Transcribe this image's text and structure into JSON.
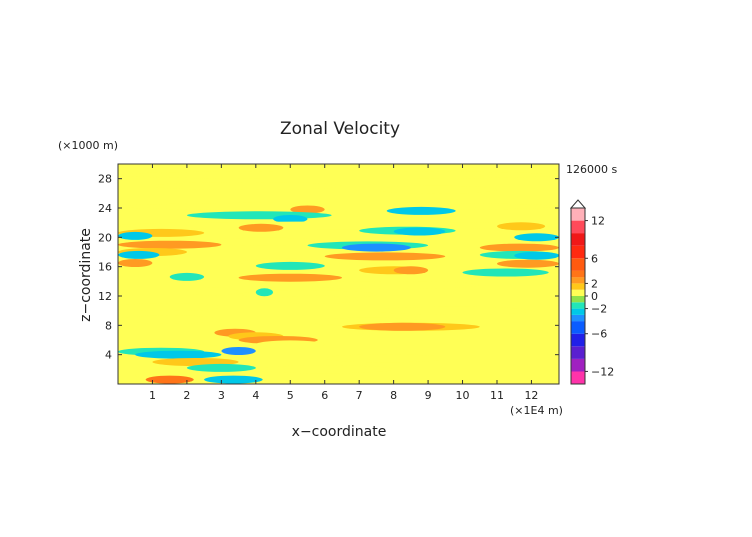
{
  "chart_data": {
    "type": "heatmap",
    "title": "Zonal Velocity",
    "xlabel": "x−coordinate",
    "ylabel": "z−coordinate",
    "x_unit": "(×1E4 m)",
    "y_unit": "(×1000 m)",
    "time_label": "126000 s",
    "xlim": [
      0,
      12.8
    ],
    "ylim": [
      0,
      30
    ],
    "x_ticks": [
      1,
      2,
      3,
      4,
      5,
      6,
      7,
      8,
      9,
      10,
      11,
      12
    ],
    "y_ticks": [
      4,
      8,
      12,
      16,
      20,
      24,
      28
    ],
    "background_level": 0,
    "colorbar": {
      "range": [
        -14,
        14
      ],
      "tick_values": [
        12,
        6,
        2,
        0,
        -2,
        -6,
        -12
      ],
      "tick_labels": [
        "12",
        "6",
        "2",
        "0",
        "−2",
        "−6",
        "−12"
      ],
      "levels": [
        {
          "from": -14,
          "to": -12,
          "color": "#ff33aa"
        },
        {
          "from": -12,
          "to": -10,
          "color": "#a020c0"
        },
        {
          "from": -10,
          "to": -8,
          "color": "#5a1fd0"
        },
        {
          "from": -8,
          "to": -6,
          "color": "#2020e8"
        },
        {
          "from": -6,
          "to": -4,
          "color": "#0a5cff"
        },
        {
          "from": -4,
          "to": -3,
          "color": "#1e90ff"
        },
        {
          "from": -3,
          "to": -2,
          "color": "#00c8e8"
        },
        {
          "from": -2,
          "to": -1,
          "color": "#22e6b8"
        },
        {
          "from": -1,
          "to": 0,
          "color": "#8fe24a"
        },
        {
          "from": 0,
          "to": 1,
          "color": "#ffff55"
        },
        {
          "from": 1,
          "to": 2,
          "color": "#ffc81a"
        },
        {
          "from": 2,
          "to": 3,
          "color": "#ff9a22"
        },
        {
          "from": 3,
          "to": 4,
          "color": "#ff7418"
        },
        {
          "from": 4,
          "to": 6,
          "color": "#ff5a10"
        },
        {
          "from": 6,
          "to": 8,
          "color": "#ff2a10"
        },
        {
          "from": 8,
          "to": 10,
          "color": "#f01818"
        },
        {
          "from": 10,
          "to": 12,
          "color": "#ff4a5a"
        },
        {
          "from": 12,
          "to": 14,
          "color": "#ffb0b8"
        }
      ]
    },
    "bands": [
      {
        "z": 28.5,
        "x0": 0.0,
        "x1": 12.8,
        "v": 0.5
      },
      {
        "z": 27.0,
        "x0": 1.0,
        "x1": 6.5,
        "v": 0.5
      },
      {
        "z": 26.5,
        "x0": 7.5,
        "x1": 11.0,
        "v": 0.5
      },
      {
        "z": 24.2,
        "x0": 0.0,
        "x1": 12.8,
        "v": 0.5
      },
      {
        "z": 23.8,
        "x0": 5.0,
        "x1": 6.0,
        "v": 2.5
      },
      {
        "z": 23.6,
        "x0": 7.8,
        "x1": 9.8,
        "v": -2.5
      },
      {
        "z": 23.0,
        "x0": 2.0,
        "x1": 6.2,
        "v": -1.5
      },
      {
        "z": 22.5,
        "x0": 4.5,
        "x1": 5.5,
        "v": -2.5
      },
      {
        "z": 21.6,
        "x0": 0.0,
        "x1": 12.8,
        "v": 0.5
      },
      {
        "z": 21.3,
        "x0": 3.5,
        "x1": 4.8,
        "v": 2.5
      },
      {
        "z": 21.5,
        "x0": 11.0,
        "x1": 12.4,
        "v": 1.5
      },
      {
        "z": 20.9,
        "x0": 7.0,
        "x1": 9.8,
        "v": -1.5
      },
      {
        "z": 20.8,
        "x0": 8.0,
        "x1": 9.5,
        "v": -2.5
      },
      {
        "z": 20.6,
        "x0": 0.0,
        "x1": 2.5,
        "v": 1.5
      },
      {
        "z": 20.2,
        "x0": 0.0,
        "x1": 1.0,
        "v": -2.5
      },
      {
        "z": 20.0,
        "x0": 11.5,
        "x1": 12.8,
        "v": -2.5
      },
      {
        "z": 19.4,
        "x0": 2.5,
        "x1": 6.0,
        "v": 0.5
      },
      {
        "z": 19.0,
        "x0": 0.0,
        "x1": 3.0,
        "v": 2.5
      },
      {
        "z": 18.9,
        "x0": 5.5,
        "x1": 9.0,
        "v": -1.5
      },
      {
        "z": 18.6,
        "x0": 6.5,
        "x1": 8.5,
        "v": -3.5
      },
      {
        "z": 18.6,
        "x0": 10.5,
        "x1": 12.8,
        "v": 2.5
      },
      {
        "z": 18.0,
        "x0": 0.0,
        "x1": 2.0,
        "v": 1.5
      },
      {
        "z": 17.6,
        "x0": 0.0,
        "x1": 1.2,
        "v": -2.5
      },
      {
        "z": 17.4,
        "x0": 6.0,
        "x1": 9.5,
        "v": 2.5
      },
      {
        "z": 17.6,
        "x0": 10.5,
        "x1": 12.8,
        "v": -1.5
      },
      {
        "z": 17.5,
        "x0": 11.5,
        "x1": 12.8,
        "v": -2.5
      },
      {
        "z": 16.6,
        "x0": 3.5,
        "x1": 6.5,
        "v": 0.5
      },
      {
        "z": 16.5,
        "x0": 0.0,
        "x1": 1.0,
        "v": 2.5
      },
      {
        "z": 16.4,
        "x0": 11.0,
        "x1": 12.8,
        "v": 2.5
      },
      {
        "z": 16.1,
        "x0": 4.0,
        "x1": 6.0,
        "v": -1.5
      },
      {
        "z": 15.5,
        "x0": 7.0,
        "x1": 9.0,
        "v": 1.5
      },
      {
        "z": 15.5,
        "x0": 8.0,
        "x1": 9.0,
        "v": 2.5
      },
      {
        "z": 15.2,
        "x0": 10.0,
        "x1": 12.5,
        "v": -1.5
      },
      {
        "z": 14.5,
        "x0": 3.5,
        "x1": 6.5,
        "v": 2.5
      },
      {
        "z": 14.6,
        "x0": 1.5,
        "x1": 2.5,
        "v": -1.5
      },
      {
        "z": 13.5,
        "x0": 5.5,
        "x1": 10.5,
        "v": 0.5
      },
      {
        "z": 12.6,
        "x0": 2.0,
        "x1": 3.5,
        "v": 0.5
      },
      {
        "z": 12.2,
        "x0": 3.5,
        "x1": 7.5,
        "v": 0.5
      },
      {
        "z": 12.5,
        "x0": 4.0,
        "x1": 4.5,
        "v": -1.5
      },
      {
        "z": 11.5,
        "x0": 4.5,
        "x1": 7.0,
        "v": 0.5
      },
      {
        "z": 10.5,
        "x0": 0.0,
        "x1": 3.0,
        "v": 0.5
      },
      {
        "z": 10.0,
        "x0": 7.5,
        "x1": 12.0,
        "v": 0.5
      },
      {
        "z": 8.8,
        "x0": 0.0,
        "x1": 3.0,
        "v": 0.5
      },
      {
        "z": 8.5,
        "x0": 5.5,
        "x1": 9.0,
        "v": 0.5
      },
      {
        "z": 7.8,
        "x0": 6.5,
        "x1": 10.5,
        "v": 1.5
      },
      {
        "z": 7.8,
        "x0": 7.0,
        "x1": 9.5,
        "v": 2.5
      },
      {
        "z": 7.0,
        "x0": 2.8,
        "x1": 4.0,
        "v": 2.5
      },
      {
        "z": 6.5,
        "x0": 3.2,
        "x1": 4.8,
        "v": 1.5
      },
      {
        "z": 6.0,
        "x0": 3.5,
        "x1": 5.8,
        "v": 2.5
      },
      {
        "z": 5.4,
        "x0": 4.0,
        "x1": 6.0,
        "v": 0.5
      },
      {
        "z": 5.0,
        "x0": 0.0,
        "x1": 3.0,
        "v": 0.5
      },
      {
        "z": 4.4,
        "x0": 0.0,
        "x1": 2.5,
        "v": -1.5
      },
      {
        "z": 4.0,
        "x0": 0.5,
        "x1": 3.0,
        "v": -2.5
      },
      {
        "z": 4.5,
        "x0": 3.0,
        "x1": 4.0,
        "v": -3.5
      },
      {
        "z": 3.5,
        "x0": 6.0,
        "x1": 9.5,
        "v": 0.5
      },
      {
        "z": 3.0,
        "x0": 1.0,
        "x1": 3.5,
        "v": 1.5
      },
      {
        "z": 2.2,
        "x0": 2.0,
        "x1": 4.0,
        "v": -1.5
      },
      {
        "z": 2.0,
        "x0": 4.0,
        "x1": 8.0,
        "v": 0.5
      },
      {
        "z": 1.2,
        "x0": 0.5,
        "x1": 3.0,
        "v": 0.5
      },
      {
        "z": 0.6,
        "x0": 0.8,
        "x1": 2.2,
        "v": 3.5
      },
      {
        "z": 0.6,
        "x0": 2.5,
        "x1": 4.2,
        "v": -2.5
      }
    ]
  }
}
